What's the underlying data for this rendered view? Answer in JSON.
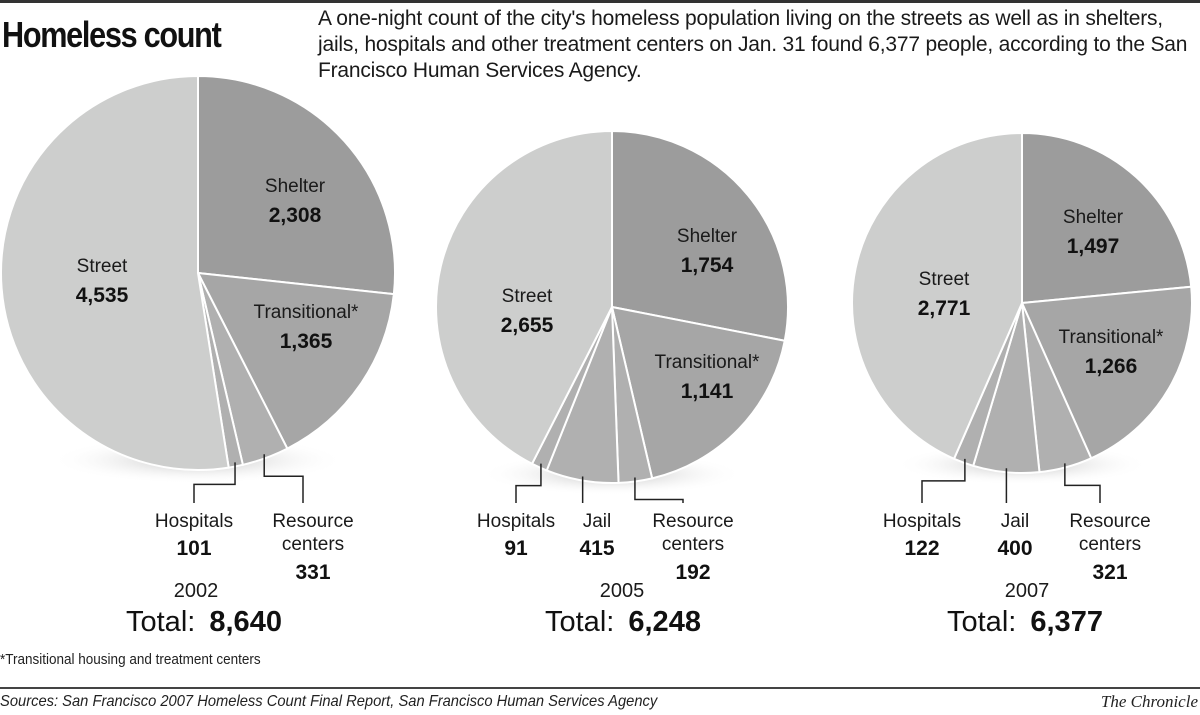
{
  "title": "Homeless count",
  "description": "A one-night count of the city's homeless population living on the streets as well as in shelters, jails, hospitals and other treatment centers on Jan. 31 found 6,377 people, according to the San Francisco Human Services Agency.",
  "footnote": "*Transitional housing and treatment centers",
  "sources": "Sources: San Francisco 2007 Homeless Count Final Report, San Francisco Human Services Agency",
  "credit": "The Chronicle",
  "colors": {
    "Street": "#cdcecd",
    "Shelter": "#9c9c9c",
    "Transitional": "#a6a6a6",
    "Resource centers": "#b0b0b0",
    "Jail": "#b0b0b0",
    "Hospitals": "#b0b0b0"
  },
  "chart_data": [
    {
      "type": "pie",
      "year": "2002",
      "total_label": "Total:",
      "total": "8,640",
      "slices": [
        {
          "name": "Shelter",
          "label": "Shelter",
          "value": 2308,
          "value_label": "2,308"
        },
        {
          "name": "Transitional",
          "label": "Transitional*",
          "value": 1365,
          "value_label": "1,365"
        },
        {
          "name": "Resource centers",
          "label": "Resource",
          "label2": "centers",
          "value": 331,
          "value_label": "331"
        },
        {
          "name": "Hospitals",
          "label": "Hospitals",
          "value": 101,
          "value_label": "101"
        },
        {
          "name": "Street",
          "label": "Street",
          "value": 4535,
          "value_label": "4,535"
        }
      ]
    },
    {
      "type": "pie",
      "year": "2005",
      "total_label": "Total:",
      "total": "6,248",
      "slices": [
        {
          "name": "Shelter",
          "label": "Shelter",
          "value": 1754,
          "value_label": "1,754"
        },
        {
          "name": "Transitional",
          "label": "Transitional*",
          "value": 1141,
          "value_label": "1,141"
        },
        {
          "name": "Resource centers",
          "label": "Resource",
          "label2": "centers",
          "value": 192,
          "value_label": "192"
        },
        {
          "name": "Jail",
          "label": "Jail",
          "value": 415,
          "value_label": "415"
        },
        {
          "name": "Hospitals",
          "label": "Hospitals",
          "value": 91,
          "value_label": "91"
        },
        {
          "name": "Street",
          "label": "Street",
          "value": 2655,
          "value_label": "2,655"
        }
      ]
    },
    {
      "type": "pie",
      "year": "2007",
      "total_label": "Total:",
      "total": "6,377",
      "slices": [
        {
          "name": "Shelter",
          "label": "Shelter",
          "value": 1497,
          "value_label": "1,497"
        },
        {
          "name": "Transitional",
          "label": "Transitional*",
          "value": 1266,
          "value_label": "1,266"
        },
        {
          "name": "Resource centers",
          "label": "Resource",
          "label2": "centers",
          "value": 321,
          "value_label": "321"
        },
        {
          "name": "Jail",
          "label": "Jail",
          "value": 400,
          "value_label": "400"
        },
        {
          "name": "Hospitals",
          "label": "Hospitals",
          "value": 122,
          "value_label": "122"
        },
        {
          "name": "Street",
          "label": "Street",
          "value": 2771,
          "value_label": "2,771"
        }
      ]
    }
  ]
}
